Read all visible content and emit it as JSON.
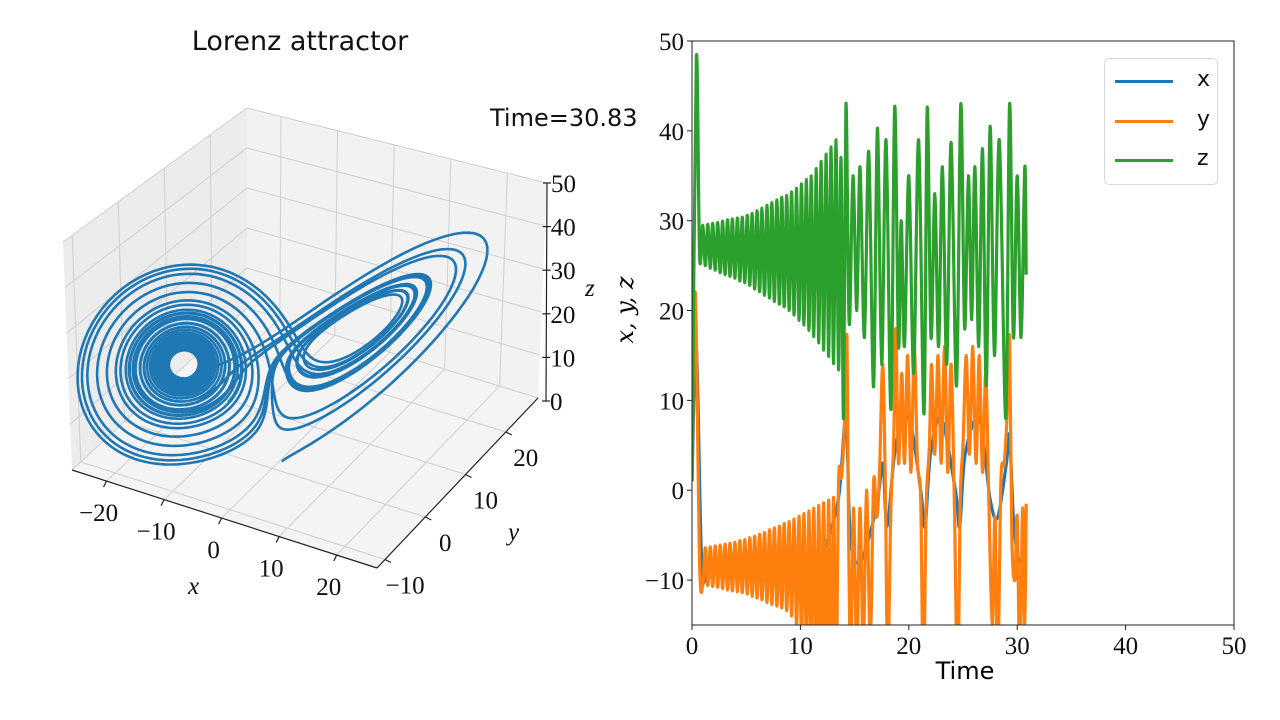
{
  "chart_data": [
    {
      "type": "line3d",
      "title": "Lorenz attractor",
      "annotation": "Time=30.83",
      "time": 30.83,
      "xlabel": "x",
      "ylabel": "y",
      "zlabel": "z",
      "xlim": [
        -26,
        27
      ],
      "ylim": [
        -12,
        28
      ],
      "zlim": [
        0,
        50
      ],
      "xticks": [
        "−20",
        "−10",
        "0",
        "10",
        "20"
      ],
      "xtick_values": [
        -20,
        -10,
        0,
        10,
        20
      ],
      "yticks": [
        "−10",
        "0",
        "10",
        "20"
      ],
      "ytick_values": [
        -10,
        0,
        10,
        20
      ],
      "zticks": [
        "0",
        "10",
        "20",
        "30",
        "40",
        "50"
      ],
      "ztick_values": [
        0,
        10,
        20,
        30,
        40,
        50
      ],
      "grid": true,
      "color": "#1f77b4"
    },
    {
      "type": "line",
      "xlabel": "Time",
      "ylabel": "x, y, z",
      "xlim": [
        0,
        50
      ],
      "ylim": [
        -15,
        50
      ],
      "xticks": [
        "0",
        "10",
        "20",
        "30",
        "40",
        "50"
      ],
      "xtick_values": [
        0,
        10,
        20,
        30,
        40,
        50
      ],
      "yticks": [
        "−10",
        "0",
        "10",
        "20",
        "30",
        "40",
        "50"
      ],
      "ytick_values": [
        -10,
        0,
        10,
        20,
        30,
        40,
        50
      ],
      "legend": "top-right",
      "series": [
        {
          "name": "x",
          "color": "#1f77b4",
          "points": [
            [
              0,
              1
            ],
            [
              0.4,
              16
            ],
            [
              0.9,
              -8.5
            ],
            [
              1.5,
              -8.6
            ],
            [
              3,
              -8.4
            ],
            [
              5,
              -8.6
            ],
            [
              7,
              -8.3
            ],
            [
              9,
              -8.7
            ],
            [
              10.5,
              -8.2
            ],
            [
              12,
              -7
            ],
            [
              13.5,
              -1
            ],
            [
              14.2,
              8
            ],
            [
              14.6,
              -5
            ],
            [
              15.5,
              -8
            ],
            [
              17,
              -2
            ],
            [
              17.6,
              3
            ],
            [
              18,
              -4
            ],
            [
              18.8,
              5
            ],
            [
              20,
              8
            ],
            [
              21.1,
              0
            ],
            [
              21.5,
              -4
            ],
            [
              22,
              4
            ],
            [
              23,
              8
            ],
            [
              24.3,
              0
            ],
            [
              24.7,
              -4
            ],
            [
              25.2,
              4
            ],
            [
              26.5,
              8
            ],
            [
              27.5,
              -1
            ],
            [
              28.2,
              -3
            ],
            [
              29,
              3
            ],
            [
              29.3,
              6
            ],
            [
              29.7,
              -4
            ],
            [
              30.3,
              -8
            ],
            [
              30.83,
              -3
            ]
          ]
        },
        {
          "name": "y",
          "color": "#ff7f0e",
          "points": [
            [
              0,
              1
            ],
            [
              0.3,
              22
            ],
            [
              0.7,
              -8
            ],
            [
              1.0,
              -10.5
            ],
            [
              1.23,
              -6.4
            ],
            [
              1.46,
              -10.6
            ],
            [
              1.69,
              -6.3
            ],
            [
              1.91,
              -10.7
            ],
            [
              2.14,
              -6.2
            ],
            [
              2.37,
              -10.8
            ],
            [
              2.6,
              -6.1
            ],
            [
              2.82,
              -10.95
            ],
            [
              3.05,
              -6.0
            ],
            [
              3.28,
              -11.1
            ],
            [
              3.51,
              -5.9
            ],
            [
              3.73,
              -11.2
            ],
            [
              3.96,
              -5.8
            ],
            [
              4.19,
              -11.3
            ],
            [
              4.42,
              -5.6
            ],
            [
              4.64,
              -11.4
            ],
            [
              4.87,
              -5.5
            ],
            [
              5.1,
              -11.55
            ],
            [
              5.33,
              -5.3
            ],
            [
              5.55,
              -11.8
            ],
            [
              5.78,
              -5.1
            ],
            [
              6.01,
              -12.0
            ],
            [
              6.24,
              -4.9
            ],
            [
              6.46,
              -12.2
            ],
            [
              6.69,
              -4.7
            ],
            [
              6.92,
              -12.5
            ],
            [
              7.15,
              -4.4
            ],
            [
              7.37,
              -12.7
            ],
            [
              7.6,
              -4.2
            ],
            [
              7.83,
              -12.9
            ],
            [
              8.06,
              -4.0
            ],
            [
              8.28,
              -13.1
            ],
            [
              8.51,
              -3.7
            ],
            [
              8.74,
              -13.4
            ],
            [
              8.97,
              -3.5
            ],
            [
              9.19,
              -14.0
            ],
            [
              9.42,
              -3.2
            ],
            [
              9.65,
              -15.0
            ],
            [
              9.88,
              -2.9
            ],
            [
              10.1,
              -16.2
            ],
            [
              10.33,
              -2.6
            ],
            [
              10.56,
              -17.2
            ],
            [
              10.79,
              -2.3
            ],
            [
              11.01,
              -18.0
            ],
            [
              11.24,
              -2.0
            ],
            [
              11.47,
              -19.0
            ],
            [
              11.7,
              -1.7
            ],
            [
              11.92,
              -20.0
            ],
            [
              12.15,
              -1.4
            ],
            [
              12.38,
              -21.0
            ],
            [
              12.61,
              -1.1
            ],
            [
              12.83,
              -22.0
            ],
            [
              13.06,
              -0.8
            ],
            [
              13.29,
              -23
            ],
            [
              13.52,
              1.0
            ],
            [
              13.8,
              1.5
            ],
            [
              14.1,
              8
            ],
            [
              14.3,
              17
            ],
            [
              14.45,
              -5
            ],
            [
              14.65,
              -20
            ],
            [
              14.9,
              -2
            ],
            [
              15.2,
              -18
            ],
            [
              15.5,
              -2
            ],
            [
              15.8,
              -18
            ],
            [
              16.1,
              0
            ],
            [
              16.45,
              -17
            ],
            [
              16.75,
              1
            ],
            [
              17.05,
              -3
            ],
            [
              17.3,
              2
            ],
            [
              17.6,
              14
            ],
            [
              17.85,
              -1
            ],
            [
              18.05,
              -20
            ],
            [
              18.35,
              -2
            ],
            [
              18.6,
              5
            ],
            [
              18.8,
              18
            ],
            [
              19.05,
              3
            ],
            [
              19.35,
              13
            ],
            [
              19.6,
              3
            ],
            [
              19.9,
              15
            ],
            [
              20.2,
              2
            ],
            [
              20.5,
              16
            ],
            [
              20.8,
              3
            ],
            [
              21.1,
              -1
            ],
            [
              21.35,
              -22
            ],
            [
              21.6,
              -2
            ],
            [
              21.9,
              5
            ],
            [
              22.1,
              14
            ],
            [
              22.4,
              4
            ],
            [
              22.7,
              15
            ],
            [
              23.0,
              3
            ],
            [
              23.3,
              16
            ],
            [
              23.6,
              2
            ],
            [
              23.9,
              14
            ],
            [
              24.2,
              -1
            ],
            [
              24.5,
              -22
            ],
            [
              24.75,
              -1
            ],
            [
              25.0,
              5
            ],
            [
              25.3,
              15
            ],
            [
              25.6,
              4
            ],
            [
              25.9,
              16
            ],
            [
              26.2,
              3
            ],
            [
              26.5,
              15
            ],
            [
              26.8,
              2
            ],
            [
              27.1,
              13
            ],
            [
              27.4,
              -2
            ],
            [
              27.7,
              -15
            ],
            [
              27.95,
              -3
            ],
            [
              28.2,
              -20
            ],
            [
              28.5,
              1
            ],
            [
              28.8,
              3
            ],
            [
              29.05,
              8
            ],
            [
              29.3,
              17
            ],
            [
              29.5,
              -5
            ],
            [
              29.8,
              -10
            ],
            [
              30.0,
              -3
            ],
            [
              30.25,
              -20
            ],
            [
              30.5,
              -2
            ],
            [
              30.7,
              -15
            ],
            [
              30.83,
              -1.5
            ]
          ]
        },
        {
          "name": "z",
          "color": "#2ca02c",
          "points": [
            [
              0,
              1
            ],
            [
              0.4,
              48
            ],
            [
              0.7,
              26
            ],
            [
              1.0,
              29.5
            ],
            [
              1.23,
              25.0
            ],
            [
              1.46,
              29.6
            ],
            [
              1.69,
              24.7
            ],
            [
              1.91,
              29.7
            ],
            [
              2.14,
              24.5
            ],
            [
              2.37,
              29.8
            ],
            [
              2.6,
              24.2
            ],
            [
              2.82,
              29.95
            ],
            [
              3.05,
              24.0
            ],
            [
              3.28,
              30.1
            ],
            [
              3.51,
              23.8
            ],
            [
              3.73,
              30.2
            ],
            [
              3.96,
              23.6
            ],
            [
              4.19,
              30.3
            ],
            [
              4.42,
              23.3
            ],
            [
              4.64,
              30.4
            ],
            [
              4.87,
              23.1
            ],
            [
              5.1,
              30.6
            ],
            [
              5.33,
              22.8
            ],
            [
              5.55,
              30.8
            ],
            [
              5.78,
              22.4
            ],
            [
              6.01,
              31.1
            ],
            [
              6.24,
              22.1
            ],
            [
              6.46,
              31.4
            ],
            [
              6.69,
              21.7
            ],
            [
              6.92,
              31.7
            ],
            [
              7.15,
              21.4
            ],
            [
              7.37,
              32.0
            ],
            [
              7.6,
              21.0
            ],
            [
              7.83,
              32.3
            ],
            [
              8.06,
              20.7
            ],
            [
              8.28,
              32.6
            ],
            [
              8.51,
              20.4
            ],
            [
              8.74,
              32.8
            ],
            [
              8.97,
              20.0
            ],
            [
              9.19,
              33.2
            ],
            [
              9.42,
              19.5
            ],
            [
              9.65,
              33.6
            ],
            [
              9.88,
              18.9
            ],
            [
              10.1,
              34.1
            ],
            [
              10.33,
              18.4
            ],
            [
              10.56,
              34.6
            ],
            [
              10.79,
              17.8
            ],
            [
              11.01,
              35.0
            ],
            [
              11.24,
              17.1
            ],
            [
              11.47,
              35.8
            ],
            [
              11.7,
              16.4
            ],
            [
              11.92,
              36.6
            ],
            [
              12.15,
              15.6
            ],
            [
              12.38,
              37.4
            ],
            [
              12.61,
              14.9
            ],
            [
              12.83,
              38.2
            ],
            [
              13.06,
              14.1
            ],
            [
              13.29,
              39.0
            ],
            [
              13.52,
              13.4
            ],
            [
              13.75,
              37
            ],
            [
              13.98,
              8
            ],
            [
              14.2,
              43
            ],
            [
              14.5,
              18.5
            ],
            [
              14.85,
              35
            ],
            [
              15.2,
              20
            ],
            [
              15.5,
              36
            ],
            [
              15.9,
              17
            ],
            [
              16.3,
              37.7
            ],
            [
              16.75,
              11.5
            ],
            [
              17.1,
              40.3
            ],
            [
              17.5,
              14
            ],
            [
              17.9,
              39
            ],
            [
              18.35,
              9
            ],
            [
              18.7,
              42.7
            ],
            [
              19.05,
              16
            ],
            [
              19.3,
              30
            ],
            [
              19.6,
              16
            ],
            [
              20.0,
              35
            ],
            [
              20.45,
              13
            ],
            [
              20.9,
              39
            ],
            [
              21.4,
              8.5
            ],
            [
              21.7,
              42.6
            ],
            [
              22.05,
              17
            ],
            [
              22.4,
              33
            ],
            [
              22.75,
              16
            ],
            [
              23.1,
              36
            ],
            [
              23.5,
              14
            ],
            [
              23.9,
              38.7
            ],
            [
              24.4,
              11.6
            ],
            [
              24.8,
              43
            ],
            [
              25.15,
              18
            ],
            [
              25.5,
              35
            ],
            [
              25.8,
              19
            ],
            [
              26.1,
              36
            ],
            [
              26.45,
              16
            ],
            [
              26.8,
              38
            ],
            [
              27.15,
              11.6
            ],
            [
              27.5,
              40.5
            ],
            [
              27.9,
              15
            ],
            [
              28.35,
              39
            ],
            [
              28.95,
              8
            ],
            [
              29.3,
              43
            ],
            [
              29.65,
              17
            ],
            [
              30.0,
              35
            ],
            [
              30.35,
              17
            ],
            [
              30.7,
              36
            ],
            [
              30.83,
              24
            ]
          ]
        }
      ]
    }
  ]
}
